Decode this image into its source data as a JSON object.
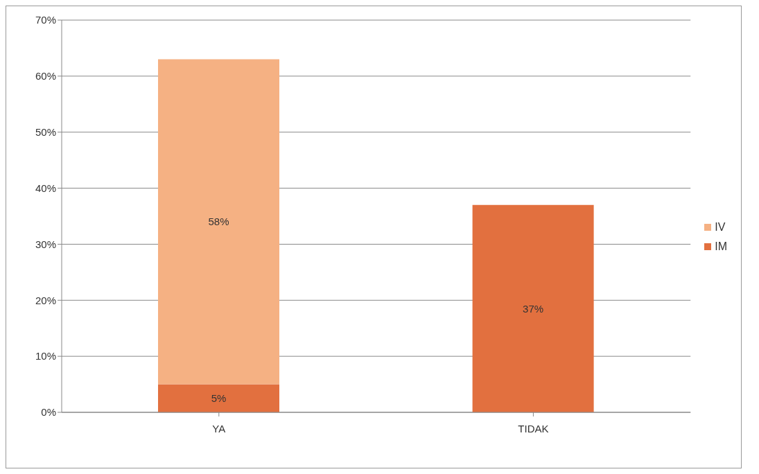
{
  "chart_data": {
    "type": "bar",
    "stacked": true,
    "categories": [
      "YA",
      "TIDAK"
    ],
    "series": [
      {
        "name": "IM",
        "color": "#e2703f",
        "values": [
          5,
          37
        ],
        "value_labels": [
          "5%",
          "37%"
        ]
      },
      {
        "name": "IV",
        "color": "#f5b183",
        "values": [
          58,
          null
        ],
        "value_labels": [
          "58%",
          null
        ]
      }
    ],
    "ylim": [
      0,
      70
    ],
    "yticks": [
      {
        "value": 0,
        "label": "0%"
      },
      {
        "value": 10,
        "label": "10%"
      },
      {
        "value": 20,
        "label": "20%"
      },
      {
        "value": 30,
        "label": "30%"
      },
      {
        "value": 40,
        "label": "40%"
      },
      {
        "value": 50,
        "label": "50%"
      },
      {
        "value": 60,
        "label": "60%"
      },
      {
        "value": 70,
        "label": "70%"
      }
    ],
    "grid": "y",
    "legend": "right"
  }
}
